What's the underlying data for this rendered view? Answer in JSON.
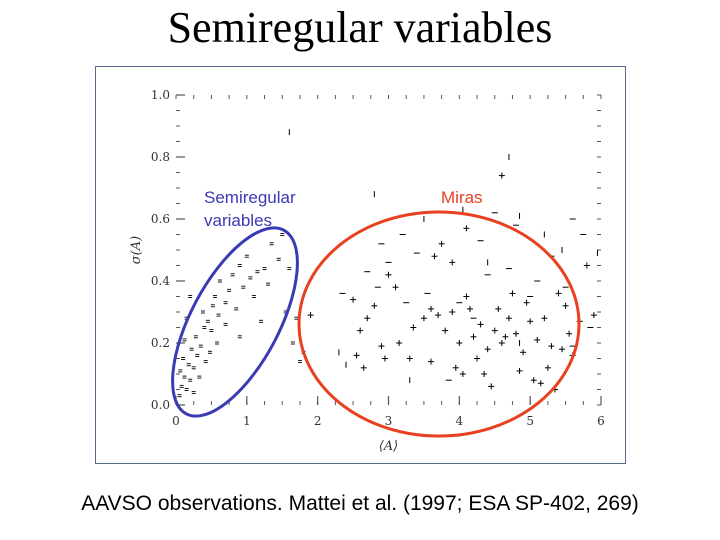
{
  "title": "Semiregular variables",
  "caption": "AAVSO observations. Mattei et al. (1997; ESA SP-402, 269)",
  "colors": {
    "semiregular": "#3a3ab4",
    "miras": "#e84020",
    "marks": "#000000"
  },
  "chart_data": {
    "type": "scatter",
    "xlabel": "⟨A⟩",
    "ylabel": "σ(A)",
    "xlim": [
      0,
      6
    ],
    "ylim": [
      0,
      1.0
    ],
    "xticks": [
      0,
      1,
      2,
      3,
      4,
      5,
      6
    ],
    "xtick_labels": [
      "0",
      "1",
      "2",
      "3",
      "4",
      "5",
      "6"
    ],
    "yticks": [
      0,
      0.2,
      0.4,
      0.6,
      0.8,
      1.0
    ],
    "ytick_labels": [
      "0.0",
      "0.2",
      "0.4",
      "0.6",
      "0.8",
      "1.0"
    ],
    "annotations": [
      {
        "text_lines": [
          "Semiregular",
          "variables"
        ],
        "color": "#3a3ab4"
      },
      {
        "text_lines": [
          "Miras"
        ],
        "color": "#e84020"
      }
    ],
    "series": [
      {
        "marker": "small",
        "points": [
          [
            0.05,
            0.03
          ],
          [
            0.08,
            0.06
          ],
          [
            0.12,
            0.09
          ],
          [
            0.06,
            0.11
          ],
          [
            0.15,
            0.05
          ],
          [
            0.2,
            0.08
          ],
          [
            0.1,
            0.15
          ],
          [
            0.18,
            0.13
          ],
          [
            0.25,
            0.12
          ],
          [
            0.3,
            0.16
          ],
          [
            0.22,
            0.18
          ],
          [
            0.28,
            0.22
          ],
          [
            0.35,
            0.19
          ],
          [
            0.12,
            0.21
          ],
          [
            0.4,
            0.25
          ],
          [
            0.45,
            0.27
          ],
          [
            0.5,
            0.24
          ],
          [
            0.38,
            0.3
          ],
          [
            0.52,
            0.32
          ],
          [
            0.6,
            0.29
          ],
          [
            0.55,
            0.35
          ],
          [
            0.7,
            0.33
          ],
          [
            0.75,
            0.37
          ],
          [
            0.62,
            0.4
          ],
          [
            0.8,
            0.42
          ],
          [
            0.9,
            0.45
          ],
          [
            0.95,
            0.38
          ],
          [
            1.05,
            0.41
          ],
          [
            1.15,
            0.43
          ],
          [
            1.25,
            0.44
          ],
          [
            1.3,
            0.39
          ],
          [
            1.1,
            0.35
          ],
          [
            0.85,
            0.31
          ],
          [
            0.7,
            0.26
          ],
          [
            0.58,
            0.2
          ],
          [
            0.48,
            0.17
          ],
          [
            0.33,
            0.09
          ],
          [
            0.25,
            0.04
          ],
          [
            0.42,
            0.14
          ],
          [
            1.0,
            0.48
          ],
          [
            0.2,
            0.35
          ],
          [
            0.15,
            0.28
          ],
          [
            1.45,
            0.47
          ],
          [
            1.6,
            0.44
          ],
          [
            1.35,
            0.52
          ],
          [
            1.5,
            0.55
          ],
          [
            1.55,
            0.3
          ],
          [
            1.7,
            0.28
          ],
          [
            1.75,
            0.14
          ],
          [
            1.8,
            0.17
          ],
          [
            1.65,
            0.2
          ],
          [
            1.2,
            0.27
          ],
          [
            0.9,
            0.22
          ]
        ]
      },
      {
        "marker": "plus",
        "points": [
          [
            1.9,
            0.29
          ],
          [
            2.5,
            0.34
          ],
          [
            2.6,
            0.24
          ],
          [
            2.7,
            0.28
          ],
          [
            2.8,
            0.32
          ],
          [
            2.55,
            0.16
          ],
          [
            2.65,
            0.12
          ],
          [
            2.9,
            0.19
          ],
          [
            3.0,
            0.42
          ],
          [
            3.1,
            0.38
          ],
          [
            3.3,
            0.15
          ],
          [
            3.5,
            0.28
          ],
          [
            3.6,
            0.31
          ],
          [
            3.7,
            0.29
          ],
          [
            3.8,
            0.24
          ],
          [
            3.9,
            0.3
          ],
          [
            4.0,
            0.2
          ],
          [
            4.1,
            0.35
          ],
          [
            4.2,
            0.22
          ],
          [
            4.3,
            0.26
          ],
          [
            4.4,
            0.18
          ],
          [
            4.5,
            0.24
          ],
          [
            4.55,
            0.31
          ],
          [
            4.6,
            0.2
          ],
          [
            4.7,
            0.28
          ],
          [
            4.75,
            0.36
          ],
          [
            4.8,
            0.23
          ],
          [
            4.9,
            0.17
          ],
          [
            5.0,
            0.27
          ],
          [
            5.1,
            0.21
          ],
          [
            5.2,
            0.28
          ],
          [
            5.25,
            0.12
          ],
          [
            5.3,
            0.19
          ],
          [
            5.4,
            0.36
          ],
          [
            5.5,
            0.32
          ],
          [
            5.6,
            0.16
          ],
          [
            5.7,
            0.27
          ],
          [
            5.8,
            0.45
          ],
          [
            5.9,
            0.29
          ],
          [
            3.65,
            0.48
          ],
          [
            3.75,
            0.52
          ],
          [
            3.9,
            0.46
          ],
          [
            4.15,
            0.31
          ],
          [
            4.25,
            0.15
          ],
          [
            4.35,
            0.1
          ],
          [
            4.45,
            0.06
          ],
          [
            5.05,
            0.08
          ],
          [
            5.15,
            0.07
          ],
          [
            5.35,
            0.05
          ],
          [
            4.6,
            0.74
          ],
          [
            4.1,
            0.57
          ],
          [
            3.6,
            0.14
          ],
          [
            3.95,
            0.12
          ],
          [
            4.05,
            0.1
          ],
          [
            4.65,
            0.22
          ],
          [
            4.85,
            0.11
          ],
          [
            5.45,
            0.18
          ],
          [
            5.55,
            0.23
          ],
          [
            2.95,
            0.15
          ],
          [
            3.15,
            0.2
          ],
          [
            3.35,
            0.25
          ],
          [
            4.95,
            0.33
          ]
        ]
      },
      {
        "marker": "dash",
        "points": [
          [
            2.9,
            0.52
          ],
          [
            3.0,
            0.46
          ],
          [
            3.2,
            0.55
          ],
          [
            3.4,
            0.49
          ],
          [
            4.3,
            0.53
          ],
          [
            4.5,
            0.62
          ],
          [
            4.8,
            0.58
          ],
          [
            5.3,
            0.48
          ],
          [
            5.6,
            0.6
          ],
          [
            5.75,
            0.55
          ],
          [
            2.7,
            0.43
          ],
          [
            2.85,
            0.38
          ],
          [
            4.0,
            0.33
          ],
          [
            4.4,
            0.42
          ],
          [
            5.1,
            0.4
          ],
          [
            5.5,
            0.38
          ],
          [
            5.85,
            0.25
          ],
          [
            5.6,
            0.19
          ],
          [
            3.25,
            0.33
          ],
          [
            4.2,
            0.28
          ],
          [
            4.7,
            0.44
          ],
          [
            3.55,
            0.36
          ],
          [
            5.0,
            0.35
          ],
          [
            3.85,
            0.08
          ],
          [
            2.35,
            0.36
          ]
        ]
      },
      {
        "marker": "tick",
        "points": [
          [
            2.8,
            0.68
          ],
          [
            4.7,
            0.8
          ],
          [
            5.95,
            0.49
          ],
          [
            4.85,
            0.61
          ],
          [
            3.3,
            0.08
          ],
          [
            3.5,
            0.6
          ],
          [
            4.05,
            0.63
          ],
          [
            4.4,
            0.46
          ],
          [
            5.2,
            0.55
          ],
          [
            5.45,
            0.5
          ],
          [
            4.85,
            0.2
          ],
          [
            2.4,
            0.13
          ],
          [
            2.3,
            0.17
          ],
          [
            1.6,
            0.88
          ]
        ]
      }
    ]
  }
}
